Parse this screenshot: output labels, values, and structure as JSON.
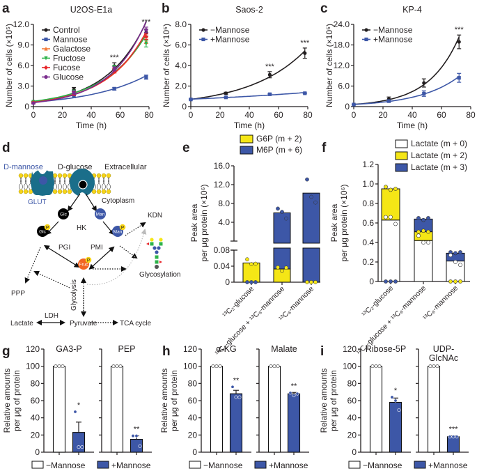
{
  "colors": {
    "black": "#231f20",
    "blue": "#3d57a7",
    "orange": "#f47b3a",
    "green": "#2db34a",
    "red": "#e8262a",
    "purple": "#7b2d8e",
    "yellow": "#f5e616",
    "teal": "#1a6e8a",
    "membrane_yellow": "#f7d417",
    "fruc_orange": "#f26522",
    "gray_dotted": "#b0b0b0"
  },
  "chart_data": [
    {
      "panel": "a",
      "type": "line",
      "title": "U2OS-E1a",
      "xlabel": "Time (h)",
      "ylabel": "Number of cells (×10⁵)",
      "xlim": [
        0,
        80
      ],
      "ylim": [
        0,
        12
      ],
      "xticks": [
        "0",
        "20",
        "40",
        "60",
        "80"
      ],
      "yticks": [
        "0",
        "3.0",
        "6.0",
        "9.0",
        "12.0"
      ],
      "x": [
        0,
        28,
        56,
        78
      ],
      "series": [
        {
          "name": "Control",
          "color": "#231f20",
          "marker": "circle",
          "values": [
            0.6,
            2.5,
            5.9,
            10.8
          ],
          "err": [
            0.1,
            0.3,
            0.5,
            0.5
          ]
        },
        {
          "name": "Mannose",
          "color": "#3d57a7",
          "marker": "square",
          "values": [
            0.6,
            1.5,
            2.6,
            4.3
          ],
          "err": [
            0.1,
            0.2,
            0.2,
            0.3
          ]
        },
        {
          "name": "Galactose",
          "color": "#f47b3a",
          "marker": "triangle",
          "values": [
            0.6,
            2.0,
            5.3,
            9.6
          ],
          "err": [
            0.1,
            0.2,
            0.3,
            0.4
          ]
        },
        {
          "name": "Fructose",
          "color": "#2db34a",
          "marker": "triangle-down",
          "values": [
            0.7,
            2.2,
            5.7,
            9.2
          ],
          "err": [
            0.1,
            0.2,
            0.3,
            0.5
          ]
        },
        {
          "name": "Fucose",
          "color": "#e8262a",
          "marker": "diamond",
          "values": [
            0.6,
            1.9,
            5.2,
            10.2
          ],
          "err": [
            0.1,
            0.3,
            0.3,
            0.4
          ]
        },
        {
          "name": "Glucose",
          "color": "#7b2d8e",
          "marker": "circle",
          "values": [
            0.5,
            2.1,
            5.5,
            11.2
          ],
          "err": [
            0.1,
            0.2,
            0.3,
            0.4
          ]
        }
      ],
      "annotations": [
        {
          "x": 56,
          "text": "***"
        },
        {
          "x": 78,
          "text": "***"
        }
      ],
      "legend": "top-left"
    },
    {
      "panel": "b",
      "type": "line",
      "title": "Saos-2",
      "xlabel": "Time (h)",
      "ylabel": "Number of cells (×10⁵)",
      "xlim": [
        0,
        80
      ],
      "ylim": [
        0,
        8
      ],
      "xticks": [
        "0",
        "20",
        "40",
        "60",
        "80"
      ],
      "yticks": [
        "0",
        "2.0",
        "4.0",
        "6.0",
        "8.0"
      ],
      "x": [
        0,
        24,
        54,
        78
      ],
      "series": [
        {
          "name": "−Mannose",
          "color": "#231f20",
          "marker": "circle",
          "values": [
            0.7,
            1.3,
            3.1,
            5.2
          ],
          "err": [
            0.05,
            0.1,
            0.3,
            0.5
          ]
        },
        {
          "name": "+Mannose",
          "color": "#3d57a7",
          "marker": "square",
          "values": [
            0.7,
            0.9,
            1.2,
            1.3
          ],
          "err": [
            0.05,
            0.05,
            0.05,
            0.05
          ]
        }
      ],
      "annotations": [
        {
          "x": 54,
          "text": "***"
        },
        {
          "x": 78,
          "text": "***"
        }
      ],
      "legend": "top-left"
    },
    {
      "panel": "c",
      "type": "line",
      "title": "KP-4",
      "xlabel": "Time (h)",
      "ylabel": "Number of cells (×10⁵)",
      "xlim": [
        0,
        80
      ],
      "ylim": [
        0,
        24
      ],
      "xticks": [
        "0",
        "20",
        "40",
        "60",
        "80"
      ],
      "yticks": [
        "0",
        "6.0",
        "12.0",
        "18.0",
        "24.0"
      ],
      "x": [
        0,
        24,
        48,
        72
      ],
      "series": [
        {
          "name": "−Mannose",
          "color": "#231f20",
          "marker": "circle",
          "values": [
            0.6,
            2.2,
            6.9,
            18.9
          ],
          "err": [
            0.1,
            0.6,
            1.2,
            2.0
          ]
        },
        {
          "name": "+Mannose",
          "color": "#3d57a7",
          "marker": "square",
          "values": [
            0.6,
            1.6,
            3.8,
            8.4
          ],
          "err": [
            0.1,
            0.3,
            0.8,
            1.3
          ]
        }
      ],
      "annotations": [
        {
          "x": 72,
          "text": "***"
        }
      ],
      "legend": "top-left"
    },
    {
      "panel": "e",
      "type": "bar",
      "stacked": true,
      "broken_axis": true,
      "ylabel": "Peak area per μg protein (×10⁶)",
      "categories": [
        "¹³C₂-glucose",
        "¹³C₂-glucose + ¹³C₆-mannose",
        "¹³C₆-mannose"
      ],
      "upper_yticks": [
        "4.0",
        "8.0",
        "12.0",
        "16.0"
      ],
      "lower_yticks": [
        "0",
        "0.04",
        "0.08"
      ],
      "series": [
        {
          "name": "G6P (m + 2)",
          "color": "#f5e616",
          "values": [
            0.048,
            0.033,
            0.0
          ]
        },
        {
          "name": "M6P (m + 6)",
          "color": "#3d57a7",
          "values": [
            0.0,
            6.0,
            10.2
          ]
        }
      ],
      "points": {
        "G6P": [
          [
            0.057,
            0.045,
            0.046
          ],
          [
            0.037,
            0.028,
            0.036
          ],
          [
            0.0,
            0.0,
            0.0
          ]
        ],
        "M6P": [
          [
            0.0,
            0.0,
            0.0
          ],
          [
            6.9,
            6.2,
            4.8
          ],
          [
            13.1,
            9.4,
            8.2
          ]
        ]
      },
      "legend": "top"
    },
    {
      "panel": "f",
      "type": "bar",
      "stacked": true,
      "ylabel": "Peak area per μg protein (×10⁶)",
      "ylim": [
        0,
        1.2
      ],
      "yticks": [
        "0",
        "0.2",
        "0.4",
        "0.6",
        "0.8",
        "1.0",
        "1.2"
      ],
      "categories": [
        "¹³C₂-glucose",
        "¹³C₂-glucose + ¹³C₆-mannose",
        "¹³C₆-mannose"
      ],
      "series": [
        {
          "name": "Lactate (m + 0)",
          "color": "#ffffff",
          "values": [
            0.63,
            0.42,
            0.21
          ]
        },
        {
          "name": "Lactate (m + 2)",
          "color": "#f5e616",
          "values": [
            0.32,
            0.09,
            0.0
          ]
        },
        {
          "name": "Lactate (m + 3)",
          "color": "#3d57a7",
          "values": [
            0.0,
            0.13,
            0.08
          ]
        }
      ],
      "legend": "top-right"
    },
    {
      "panel": "g",
      "type": "bar",
      "ylabel": "Relative amounts per μg of protein",
      "ylim": [
        0,
        120
      ],
      "yticks": [
        "0",
        "20",
        "40",
        "60",
        "80",
        "100",
        "120"
      ],
      "subplots": [
        {
          "title": "GA3-P",
          "values": [
            100,
            23
          ],
          "err": [
            0,
            12
          ],
          "points": [
            [
              100,
              100,
              100
            ],
            [
              47,
              6,
              6
            ]
          ],
          "sig": "*"
        },
        {
          "title": "PEP",
          "values": [
            100,
            15
          ],
          "err": [
            0,
            4
          ],
          "points": [
            [
              100,
              100,
              100
            ],
            [
              19,
              19,
              7
            ]
          ],
          "sig": "**"
        }
      ],
      "legend": [
        "−Mannose",
        "+Mannose"
      ]
    },
    {
      "panel": "h",
      "type": "bar",
      "ylabel": "Relative amounts per μg of protein",
      "ylim": [
        0,
        120
      ],
      "yticks": [
        "0",
        "20",
        "40",
        "60",
        "80",
        "100",
        "120"
      ],
      "subplots": [
        {
          "title": "α-KG",
          "values": [
            100,
            68
          ],
          "err": [
            0,
            4
          ],
          "points": [
            [
              100,
              100,
              100
            ],
            [
              76,
              64,
              64
            ]
          ],
          "sig": "**"
        },
        {
          "title": "Malate",
          "values": [
            100,
            68
          ],
          "err": [
            0,
            1.5
          ],
          "points": [
            [
              100,
              100,
              100
            ],
            [
              69,
              66,
              68
            ]
          ],
          "sig": "**"
        }
      ],
      "legend": [
        "−Mannose",
        "+Mannose"
      ]
    },
    {
      "panel": "i",
      "type": "bar",
      "ylabel": "Relative amounts per μg of protein",
      "ylim": [
        0,
        120
      ],
      "yticks": [
        "0",
        "20",
        "40",
        "60",
        "80",
        "100",
        "120"
      ],
      "subplots": [
        {
          "title": "Ribose-5P",
          "values": [
            100,
            58
          ],
          "err": [
            0,
            5
          ],
          "points": [
            [
              100,
              100,
              100
            ],
            [
              64,
              60,
              49
            ]
          ],
          "sig": "*"
        },
        {
          "title": "UDP-GlcNAc",
          "values": [
            100,
            18
          ],
          "err": [
            0,
            1
          ],
          "points": [
            [
              100,
              100,
              100
            ],
            [
              18,
              18,
              18
            ]
          ],
          "sig": "***"
        }
      ],
      "legend": [
        "−Mannose",
        "+Mannose"
      ]
    }
  ],
  "diagram_d": {
    "panel": "d",
    "labels": {
      "d_mannose": "D-mannose",
      "d_glucose": "D-glucose",
      "extracellular": "Extracellular",
      "glut": "GLUT",
      "cytoplasm": "Cytoplasm",
      "glc": "Glc",
      "man": "Man",
      "fruc": "Fruc",
      "p": "P",
      "hk": "HK",
      "pgi": "PGI",
      "pmi": "PMI",
      "kdn": "KDN",
      "glycosylation": "Glycosylation",
      "ppp": "PPP",
      "glycolysis": "Glycolysis",
      "lactate": "Lactate",
      "ldh": "LDH",
      "pyruvate": "Pyruvate",
      "tca": "TCA cycle"
    }
  },
  "panel_letters": [
    "a",
    "b",
    "c",
    "d",
    "e",
    "f",
    "g",
    "h",
    "i"
  ]
}
